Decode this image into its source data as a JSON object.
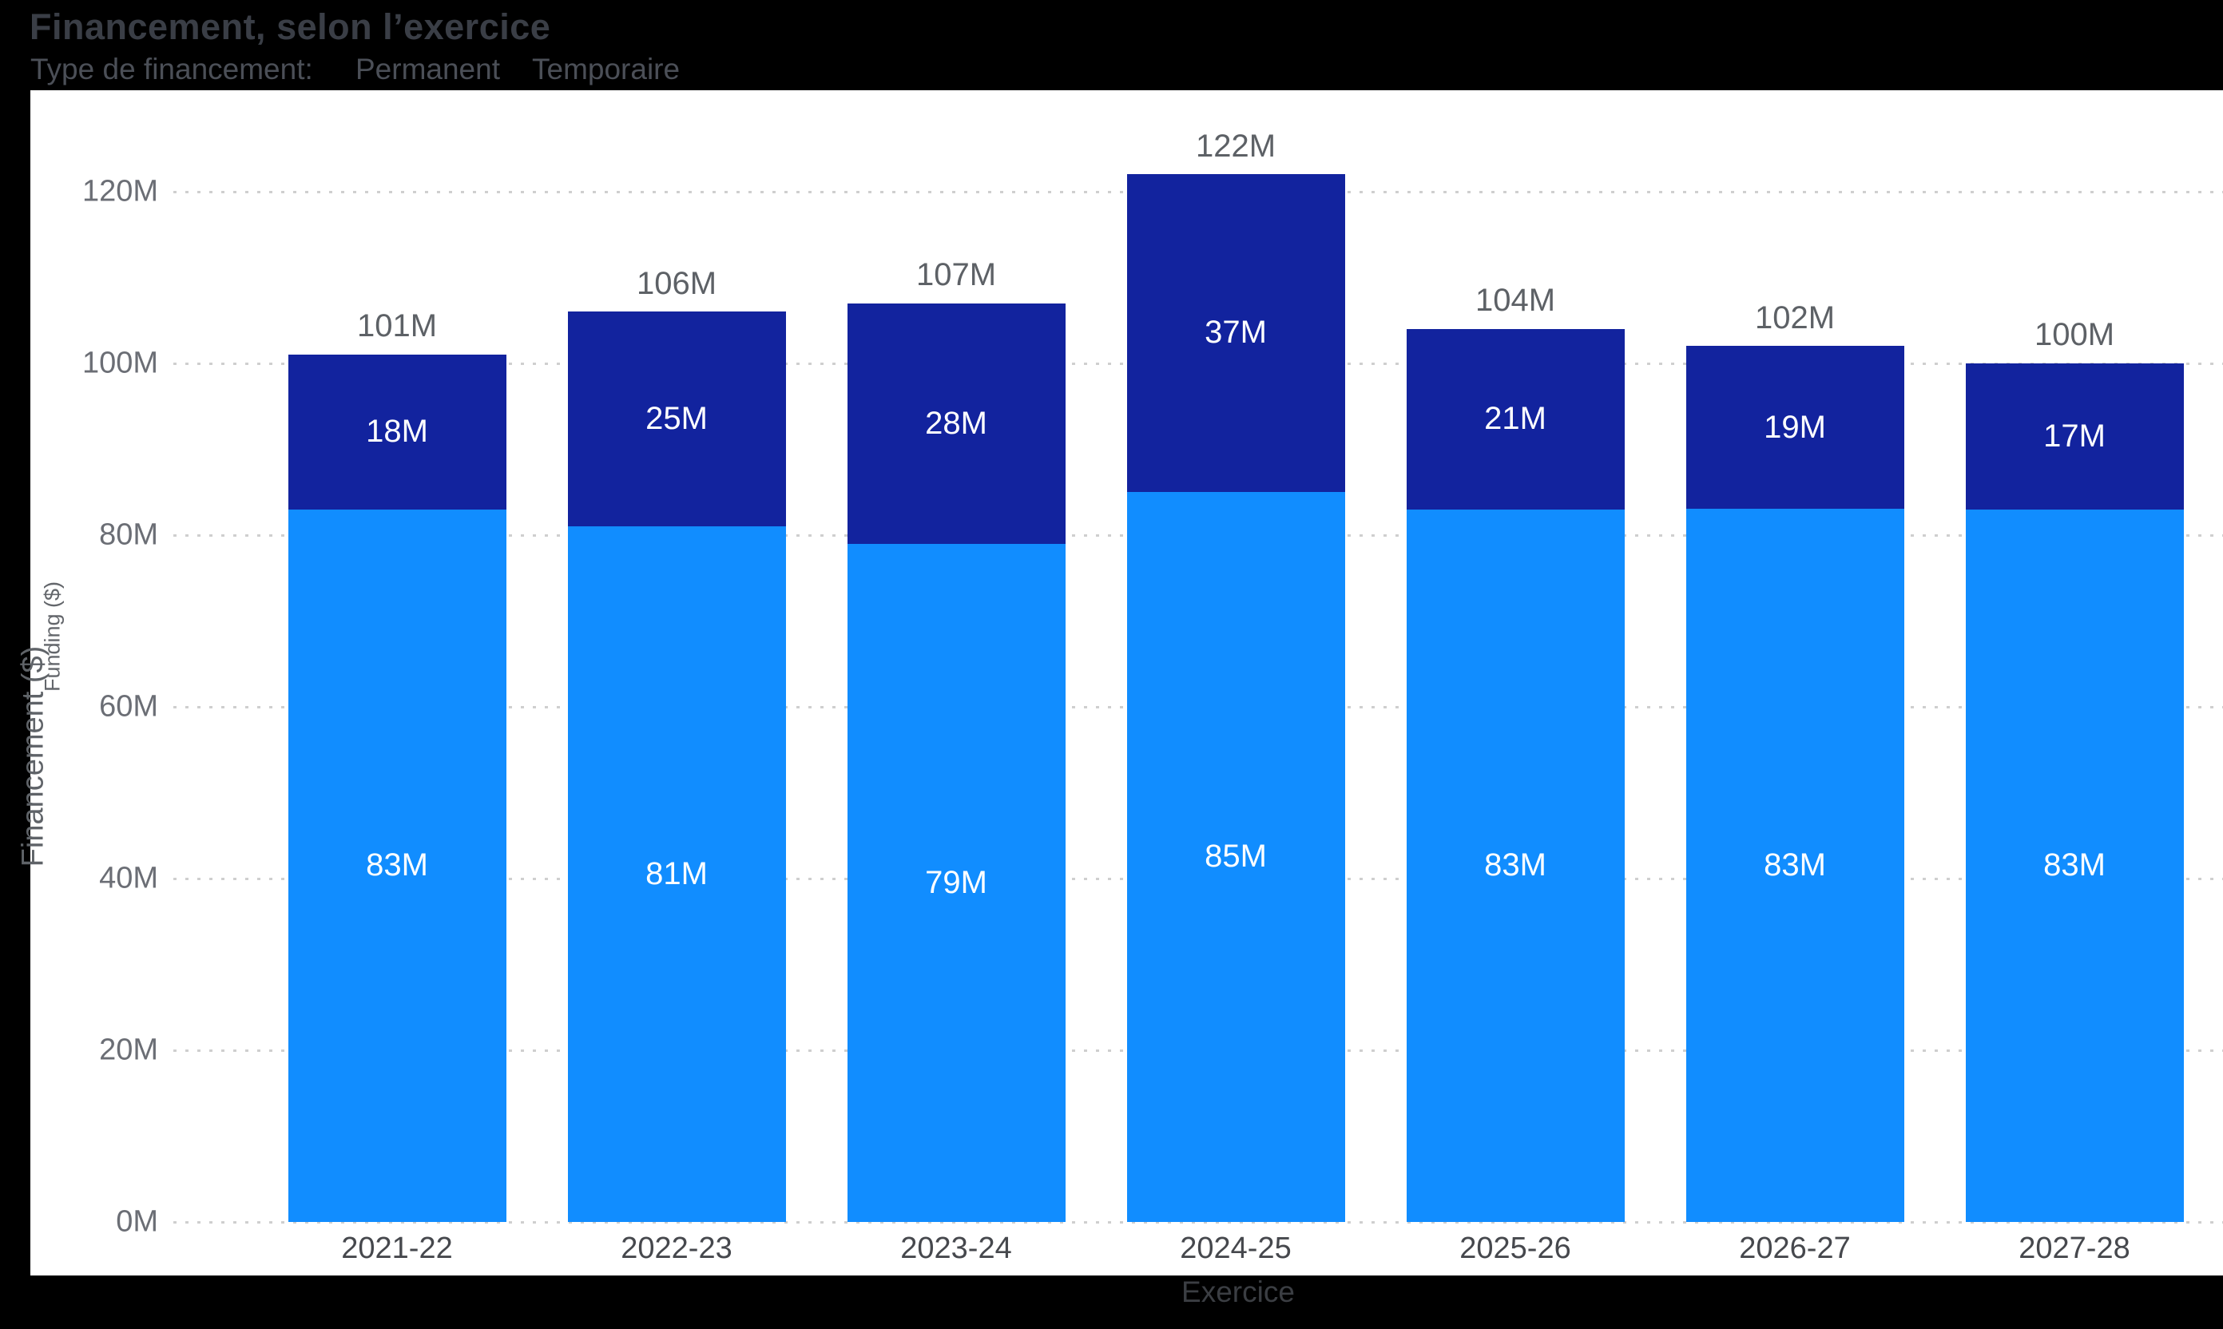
{
  "header": {
    "title": "Financement, selon l’exercice",
    "legend_label": "Type de financement:",
    "legend_items": [
      {
        "label": "Permanent",
        "color": "#118DFF"
      },
      {
        "label": "Temporaire",
        "color": "#12239E"
      }
    ]
  },
  "axes": {
    "x_title": "Exercice",
    "y_title": "Financement ($)",
    "y_title_secondary": "Funding ($)"
  },
  "chart_data": {
    "type": "bar",
    "stacked": true,
    "title": "Financement, selon l’exercice",
    "categories": [
      "2021-22",
      "2022-23",
      "2023-24",
      "2024-25",
      "2025-26",
      "2026-27",
      "2027-28"
    ],
    "series": [
      {
        "name": "Permanent",
        "color": "#118DFF",
        "values": [
          83,
          81,
          79,
          85,
          83,
          83,
          83
        ]
      },
      {
        "name": "Temporaire",
        "color": "#12239E",
        "values": [
          18,
          25,
          28,
          37,
          21,
          19,
          17
        ]
      }
    ],
    "totals": [
      101,
      106,
      107,
      122,
      104,
      102,
      100
    ],
    "value_suffix": "M",
    "xlabel": "Exercice",
    "ylabel": "Financement ($)",
    "ylabel_secondary": "Funding ($)",
    "ylim": [
      0,
      120
    ],
    "y_tick_step": 20,
    "y_tick_labels": [
      "0M",
      "20M",
      "40M",
      "60M",
      "80M",
      "100M",
      "120M"
    ],
    "grid": "horizontal-dotted",
    "legend_position": "top",
    "data_labels": "inside-center-white, totals-above-gray"
  },
  "colors": {
    "page_background": "#000000",
    "panel_background": "#ffffff",
    "permanent": "#118DFF",
    "temporaire": "#12239E",
    "gridline": "#cfcfcf",
    "title_text": "#3a3e46",
    "legend_text": "#4b4f57",
    "axis_tick_text": "#6b6e75",
    "total_label_text": "#5d6166"
  }
}
